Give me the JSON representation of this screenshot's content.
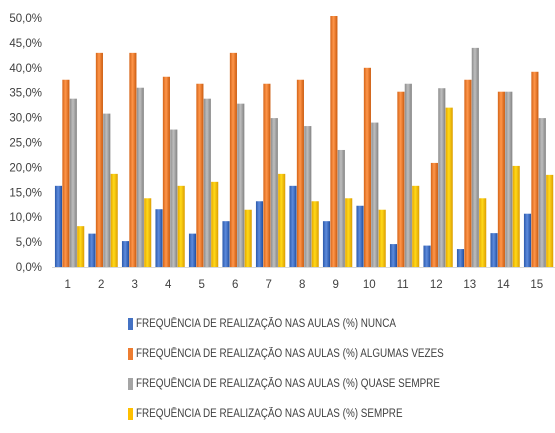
{
  "chart_data": {
    "type": "bar",
    "categories": [
      "1",
      "2",
      "3",
      "4",
      "5",
      "6",
      "7",
      "8",
      "9",
      "10",
      "11",
      "12",
      "13",
      "14",
      "15"
    ],
    "y_ticks": [
      "0,0%",
      "5,0%",
      "10,0%",
      "15,0%",
      "20,0%",
      "25,0%",
      "30,0%",
      "35,0%",
      "40,0%",
      "45,0%",
      "50,0%"
    ],
    "ylim": [
      0,
      50
    ],
    "series": [
      {
        "name": "FREQUÊNCIA DE REALIZAÇÃO NAS AULAS (%) NUNCA",
        "color": "#4472C4",
        "values": [
          16.3,
          6.7,
          5.2,
          11.6,
          6.7,
          9.2,
          13.2,
          16.3,
          9.2,
          12.3,
          4.6,
          4.3,
          3.6,
          6.8,
          10.7
        ]
      },
      {
        "name": "FREQUÊNCIA DE REALIZAÇÃO NAS AULAS (%) ALGUMAS VEZES",
        "color": "#ED7D31",
        "values": [
          37.6,
          43.0,
          43.0,
          38.2,
          36.8,
          43.0,
          36.8,
          37.6,
          50.4,
          40.0,
          35.2,
          20.9,
          37.6,
          35.2,
          39.2
        ]
      },
      {
        "name": "FREQUÊNCIA DE REALIZAÇÃO NAS AULAS (%) QUASE SEMPRE",
        "color": "#A5A5A5",
        "values": [
          33.8,
          30.8,
          36.0,
          27.6,
          33.8,
          32.8,
          29.9,
          28.3,
          23.5,
          29.0,
          36.8,
          35.9,
          44.0,
          35.2,
          29.9
        ]
      },
      {
        "name": "FREQUÊNCIA DE REALIZAÇÃO NAS AULAS (%) SEMPRE",
        "color": "#FFC000",
        "values": [
          8.2,
          18.7,
          13.8,
          16.3,
          17.1,
          11.5,
          18.7,
          13.2,
          13.8,
          11.5,
          16.3,
          32.0,
          13.8,
          20.3,
          18.5
        ]
      }
    ]
  }
}
